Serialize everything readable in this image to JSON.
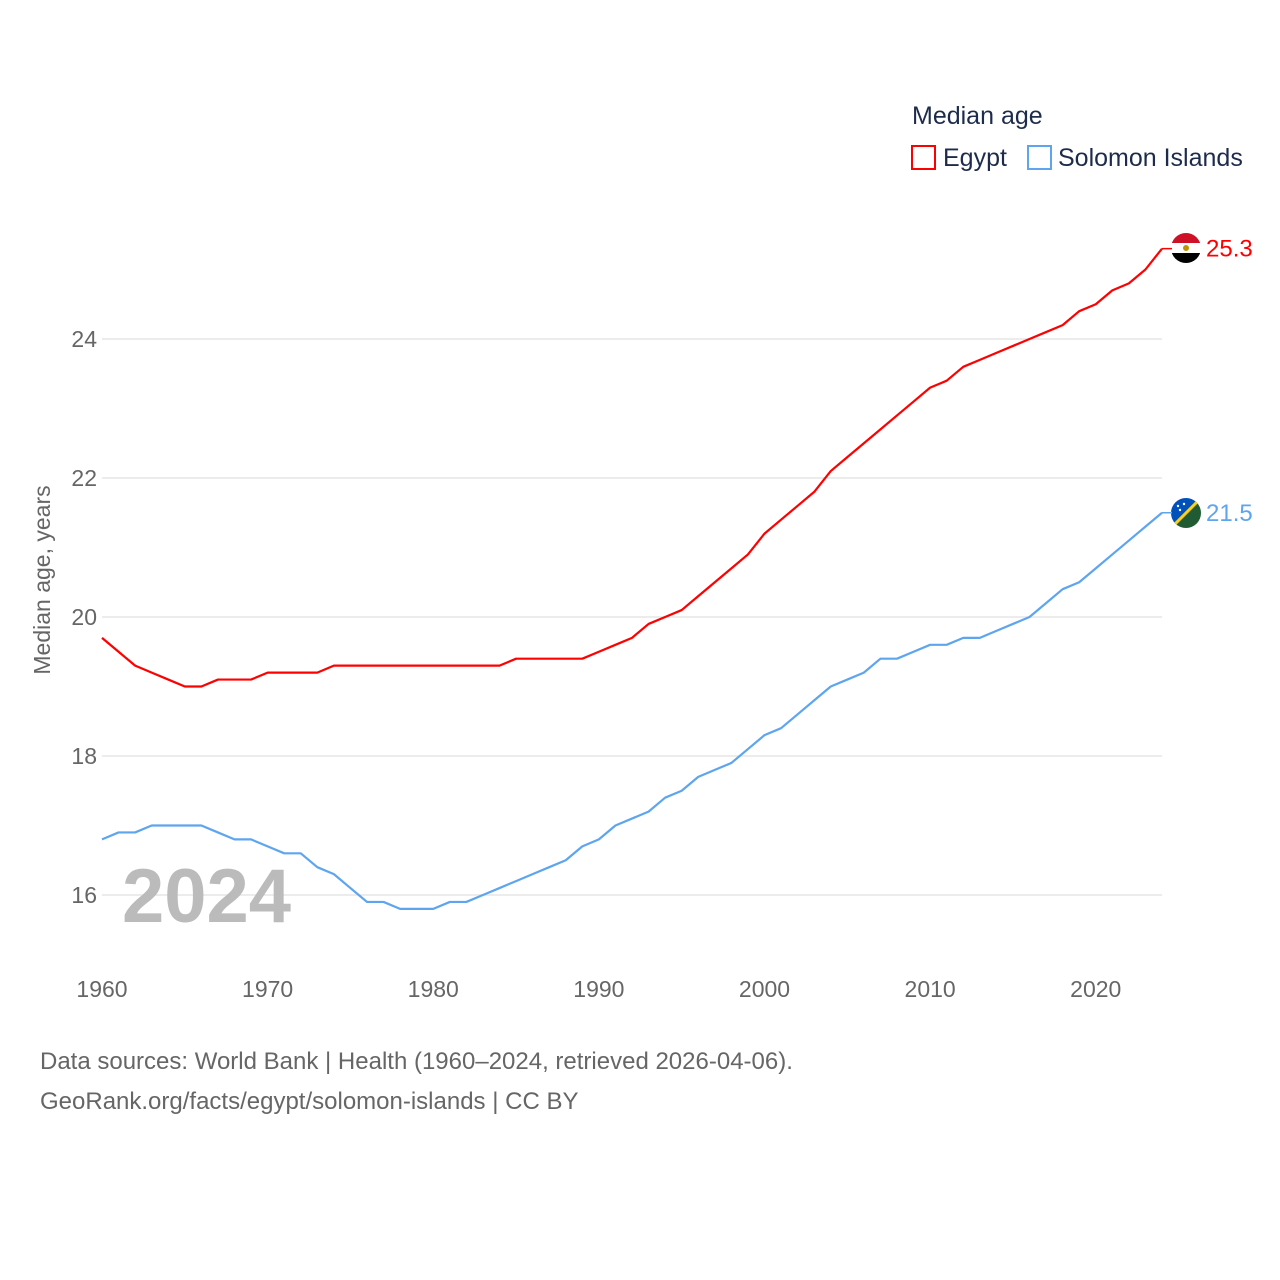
{
  "chart_data": {
    "type": "line",
    "title": "Median age",
    "xlabel": "",
    "ylabel": "Median age, years",
    "xlim": [
      1960,
      2024
    ],
    "ylim": [
      15,
      26
    ],
    "yticks": [
      16,
      18,
      20,
      22,
      24
    ],
    "xticks": [
      1960,
      1970,
      1980,
      1990,
      2000,
      2010,
      2020
    ],
    "grid": true,
    "legend_position": "top-right",
    "year_label": "2024",
    "x": [
      1960,
      1961,
      1962,
      1963,
      1964,
      1965,
      1966,
      1967,
      1968,
      1969,
      1970,
      1971,
      1972,
      1973,
      1974,
      1975,
      1976,
      1977,
      1978,
      1979,
      1980,
      1981,
      1982,
      1983,
      1984,
      1985,
      1986,
      1987,
      1988,
      1989,
      1990,
      1991,
      1992,
      1993,
      1994,
      1995,
      1996,
      1997,
      1998,
      1999,
      2000,
      2001,
      2002,
      2003,
      2004,
      2005,
      2006,
      2007,
      2008,
      2009,
      2010,
      2011,
      2012,
      2013,
      2014,
      2015,
      2016,
      2017,
      2018,
      2019,
      2020,
      2021,
      2022,
      2023,
      2024
    ],
    "series": [
      {
        "name": "Egypt",
        "color": "#ff0000",
        "end_label": "25.3",
        "values": [
          19.7,
          19.5,
          19.3,
          19.2,
          19.1,
          19.0,
          19.0,
          19.1,
          19.1,
          19.1,
          19.2,
          19.2,
          19.2,
          19.2,
          19.3,
          19.3,
          19.3,
          19.3,
          19.3,
          19.3,
          19.3,
          19.3,
          19.3,
          19.3,
          19.3,
          19.4,
          19.4,
          19.4,
          19.4,
          19.4,
          19.5,
          19.6,
          19.7,
          19.9,
          20.0,
          20.1,
          20.3,
          20.5,
          20.7,
          20.9,
          21.2,
          21.4,
          21.6,
          21.8,
          22.1,
          22.3,
          22.5,
          22.7,
          22.9,
          23.1,
          23.3,
          23.4,
          23.6,
          23.7,
          23.8,
          23.9,
          24.0,
          24.1,
          24.2,
          24.4,
          24.5,
          24.7,
          24.8,
          25.0,
          25.3
        ]
      },
      {
        "name": "Solomon Islands",
        "color": "#5ea5ef",
        "end_label": "21.5",
        "values": [
          16.8,
          16.9,
          16.9,
          17.0,
          17.0,
          17.0,
          17.0,
          16.9,
          16.8,
          16.8,
          16.7,
          16.6,
          16.6,
          16.4,
          16.3,
          16.1,
          15.9,
          15.9,
          15.8,
          15.8,
          15.8,
          15.9,
          15.9,
          16.0,
          16.1,
          16.2,
          16.3,
          16.4,
          16.5,
          16.7,
          16.8,
          17.0,
          17.1,
          17.2,
          17.4,
          17.5,
          17.7,
          17.8,
          17.9,
          18.1,
          18.3,
          18.4,
          18.6,
          18.8,
          19.0,
          19.1,
          19.2,
          19.4,
          19.4,
          19.5,
          19.6,
          19.6,
          19.7,
          19.7,
          19.8,
          19.9,
          20.0,
          20.2,
          20.4,
          20.5,
          20.7,
          20.9,
          21.1,
          21.3,
          21.5
        ]
      }
    ]
  },
  "footer": {
    "line1": "Data sources: World Bank | Health (1960–2024, retrieved 2026-04-06).",
    "line2": "GeoRank.org/facts/egypt/solomon-islands | CC BY"
  }
}
